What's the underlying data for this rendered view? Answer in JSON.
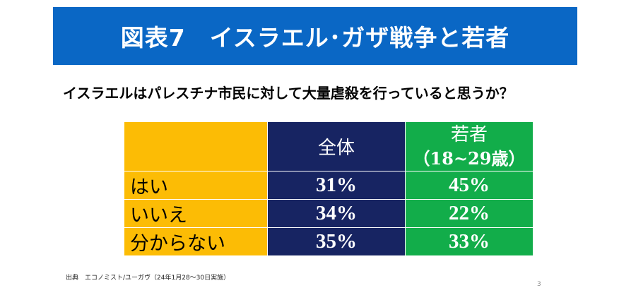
{
  "slide": {
    "title": "図表7　イスラエル･ガザ戦争と若者",
    "question": "イスラエルはパレスチナ市民に対して大量虐殺を行っていると思うか？",
    "source": "出典　エコノミスト/ユーガヴ（24年1月28～30日実施）",
    "page_number": "3"
  },
  "table": {
    "headers": {
      "label": "",
      "all": "全体",
      "young_line1": "若者",
      "young_line2": "（18~29歳）"
    },
    "rows": [
      {
        "label": "はい",
        "all": "31%",
        "young": "45%"
      },
      {
        "label": "いいえ",
        "all": "34%",
        "young": "22%"
      },
      {
        "label": "分からない",
        "all": "35%",
        "young": "33%"
      }
    ]
  },
  "colors": {
    "title_bar": "#0a67c5",
    "label_col": "#fcbc05",
    "all_col": "#172462",
    "young_col": "#12ad4a"
  }
}
